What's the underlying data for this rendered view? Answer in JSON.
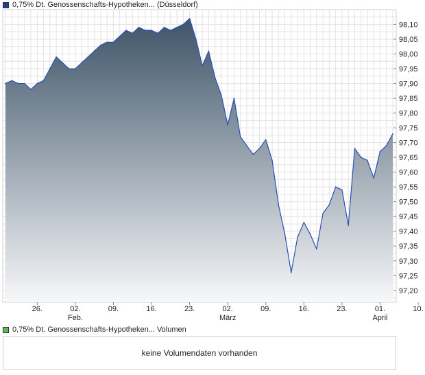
{
  "legend": {
    "price_label": "0,75% Dt. Genossenschafts-Hypotheken... (Düsseldorf)",
    "price_color": "#1f3f9e",
    "volume_label": "0,75% Dt. Genossenschafts-Hypotheken... Volumen",
    "volume_color": "#5cb85c"
  },
  "volume_panel": {
    "message": "keine Volumendaten vorhanden"
  },
  "chart_data": {
    "type": "area",
    "series": [
      {
        "name": "0,75% Dt. Genossenschafts-Hypotheken... (Düsseldorf)",
        "values": [
          97.9,
          97.91,
          97.9,
          97.9,
          97.88,
          97.9,
          97.91,
          97.95,
          97.99,
          97.97,
          97.95,
          97.95,
          97.97,
          97.99,
          98.01,
          98.03,
          98.04,
          98.04,
          98.06,
          98.08,
          98.07,
          98.09,
          98.08,
          98.08,
          98.07,
          98.09,
          98.08,
          98.09,
          98.1,
          98.12,
          98.05,
          97.96,
          98.01,
          97.92,
          97.86,
          97.76,
          97.85,
          97.72,
          97.69,
          97.66,
          97.68,
          97.71,
          97.64,
          97.49,
          97.39,
          97.26,
          97.38,
          97.43,
          97.39,
          97.34,
          97.46,
          97.49,
          97.55,
          97.54,
          97.42,
          97.68,
          97.65,
          97.64,
          97.58,
          97.67,
          97.69,
          97.73
        ]
      }
    ],
    "x_ticks": [
      {
        "index": 5,
        "label": "26."
      },
      {
        "index": 11,
        "label": "02."
      },
      {
        "index": 17,
        "label": "09."
      },
      {
        "index": 23,
        "label": "16."
      },
      {
        "index": 29,
        "label": "23."
      },
      {
        "index": 35,
        "label": "02."
      },
      {
        "index": 41,
        "label": "09."
      },
      {
        "index": 47,
        "label": "16."
      },
      {
        "index": 53,
        "label": "23."
      },
      {
        "index": 59,
        "label": "01."
      },
      {
        "index": 65,
        "label": "10."
      }
    ],
    "x_month_labels": [
      {
        "index": 11,
        "label": "Feb."
      },
      {
        "index": 35,
        "label": "März"
      },
      {
        "index": 59,
        "label": "April"
      }
    ],
    "y_ticks": [
      "97,20",
      "97,25",
      "97,30",
      "97,35",
      "97,40",
      "97,45",
      "97,50",
      "97,55",
      "97,60",
      "97,65",
      "97,70",
      "97,75",
      "97,80",
      "97,85",
      "97,90",
      "97,95",
      "98,00",
      "98,05",
      "98,10"
    ],
    "ylim": [
      97.16,
      98.15
    ],
    "grid": true,
    "gradient_colors": [
      "#3e5468",
      "#f7f8f9"
    ],
    "line_color": "#2a4fb5"
  }
}
